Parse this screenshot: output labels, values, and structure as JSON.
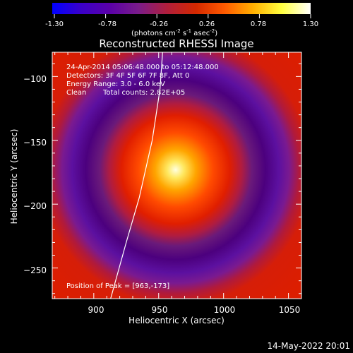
{
  "colorbar": {
    "ticks": [
      "-1.30",
      "-0.78",
      "-0.26",
      "0.26",
      "0.78",
      "1.30"
    ],
    "min": -1.3,
    "max": 1.3,
    "units_main": "(photons cm",
    "units_exp1": "-2",
    "units_mid": " s",
    "units_exp2": "-1",
    "units_end": " asec",
    "units_exp3": "-2",
    "units_close": ")",
    "colors": [
      "#0000ff",
      "#3a00c8",
      "#5a00a8",
      "#7a1c8a",
      "#b01e3c",
      "#d42800",
      "#ff5a00",
      "#ffb000",
      "#ffff40",
      "#ffffff"
    ]
  },
  "chart_data": {
    "type": "heatmap",
    "title": "Reconstructed RHESSI Image",
    "xlabel": "Heliocentric X (arcsec)",
    "ylabel": "Heliocentric Y (arcsec)",
    "xlim": [
      868,
      1060
    ],
    "ylim": [
      -274,
      -81
    ],
    "xticks": [
      900,
      950,
      1000,
      1050
    ],
    "yticks": [
      -100,
      -150,
      -200,
      -250
    ],
    "xtick_labels": [
      "900",
      "950",
      "1000",
      "1050"
    ],
    "ytick_labels": [
      "−100",
      "−150",
      "−200",
      "−250"
    ],
    "peak": [
      963,
      -173
    ],
    "limb_curve": [
      [
        913,
        -274
      ],
      [
        925,
        -230
      ],
      [
        935,
        -195
      ],
      [
        945,
        -150
      ],
      [
        951,
        -110
      ],
      [
        953,
        -81
      ]
    ],
    "annotations": {
      "time": "24-Apr-2014 05:06:48.000 to 05:12:48.000",
      "detectors": "Detectors: 3F 4F 5F 6F 7F 8F, Att 0",
      "energy": "Energy Range: 3.0 - 6.0 keV",
      "clean": "Clean",
      "counts": "Total counts: 2.82E+05",
      "peak_text": "Position of Peak = [963,-173]"
    }
  },
  "footer_date": "14-May-2022 20:01"
}
